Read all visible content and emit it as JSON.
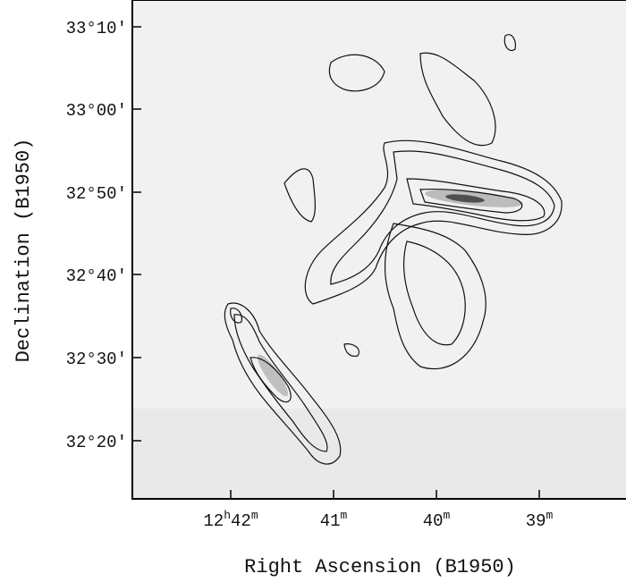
{
  "figure": {
    "x_axis": {
      "label": "Right Ascension (B1950)",
      "ticks": [
        [
          "12",
          "h",
          "42",
          "m"
        ],
        [
          "41",
          "m"
        ],
        [
          "40",
          "m"
        ],
        [
          "39",
          "m"
        ]
      ]
    },
    "y_axis": {
      "label": "Declination (B1950)",
      "ticks": [
        "33°10′",
        "33°00′",
        "32°50′",
        "32°40′",
        "32°30′",
        "32°20′"
      ]
    }
  }
}
